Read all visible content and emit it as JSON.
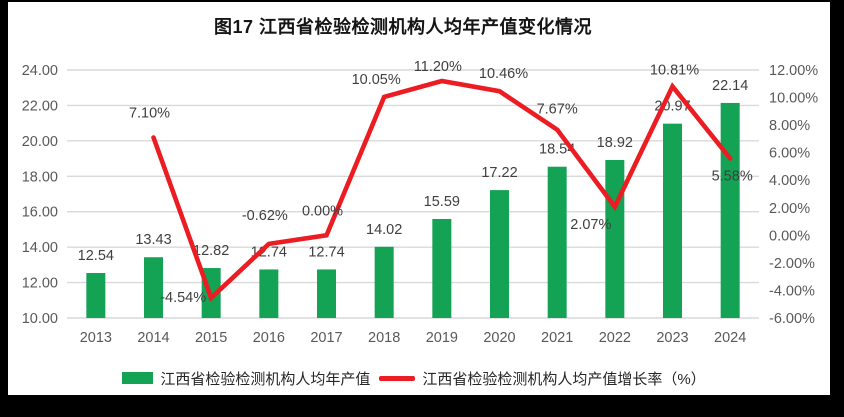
{
  "title": "图17  江西省检验检测机构人均年产值变化情况",
  "legend": {
    "items": [
      {
        "label": "江西省检验检测机构人均年产值",
        "marker": "bar",
        "color": "#14a254"
      },
      {
        "label": "江西省检验检测机构人均产值增长率（%）",
        "marker": "line",
        "color": "#eb1c22"
      }
    ]
  },
  "colors": {
    "bar": "#14a254",
    "line": "#eb1c22",
    "grid": "#d9d9d9",
    "axis_text": "#595959",
    "data_label": "#404040",
    "frame": "#000000",
    "background": "#ffffff"
  },
  "chart_data": {
    "type": "combo bar + line (dual axis)",
    "title": "图17  江西省检验检测机构人均年产值变化情况",
    "categories": [
      "2013",
      "2014",
      "2015",
      "2016",
      "2017",
      "2018",
      "2019",
      "2020",
      "2021",
      "2022",
      "2023",
      "2024"
    ],
    "series": [
      {
        "name": "江西省检验检测机构人均年产值",
        "type": "bar",
        "axis": "left",
        "values": [
          12.54,
          13.43,
          12.82,
          12.74,
          12.74,
          14.02,
          15.59,
          17.22,
          18.54,
          18.92,
          20.97,
          22.14
        ],
        "data_labels": [
          "12.54",
          "13.43",
          "12.82",
          "12.74",
          "12.74",
          "14.02",
          "15.59",
          "17.22",
          "18.54",
          "18.92",
          "20.97",
          "22.14"
        ]
      },
      {
        "name": "江西省检验检测机构人均产值增长率（%）",
        "type": "line",
        "axis": "right",
        "values": [
          null,
          7.1,
          -4.54,
          -0.62,
          0.0,
          10.05,
          11.2,
          10.46,
          7.67,
          2.07,
          10.81,
          5.58
        ],
        "data_labels": [
          null,
          "7.10%",
          "-4.54%",
          "-0.62%",
          "0.00%",
          "10.05%",
          "11.20%",
          "10.46%",
          "7.67%",
          "2.07%",
          "10.81%",
          "5.58%"
        ],
        "label_offsets": [
          [
            0,
            0
          ],
          [
            -4,
            -20
          ],
          [
            -28,
            4
          ],
          [
            -4,
            -24
          ],
          [
            -4,
            -20
          ],
          [
            -8,
            -13
          ],
          [
            -4,
            -10
          ],
          [
            4,
            -13
          ],
          [
            0,
            -16
          ],
          [
            -24,
            22
          ],
          [
            2,
            -12
          ],
          [
            2,
            22
          ]
        ]
      }
    ],
    "left_axis": {
      "min": 10,
      "max": 24,
      "step": 2,
      "tick_labels": [
        "24.00",
        "22.00",
        "20.00",
        "18.00",
        "16.00",
        "14.00",
        "12.00",
        "10.00"
      ]
    },
    "right_axis": {
      "min": -6,
      "max": 12,
      "step": 2,
      "tick_labels": [
        "12.00%",
        "10.00%",
        "8.00%",
        "6.00%",
        "4.00%",
        "2.00%",
        "0.00%",
        "-2.00%",
        "-4.00%",
        "-6.00%"
      ]
    },
    "grid": "horizontal gridlines only",
    "legend_position": "bottom"
  }
}
